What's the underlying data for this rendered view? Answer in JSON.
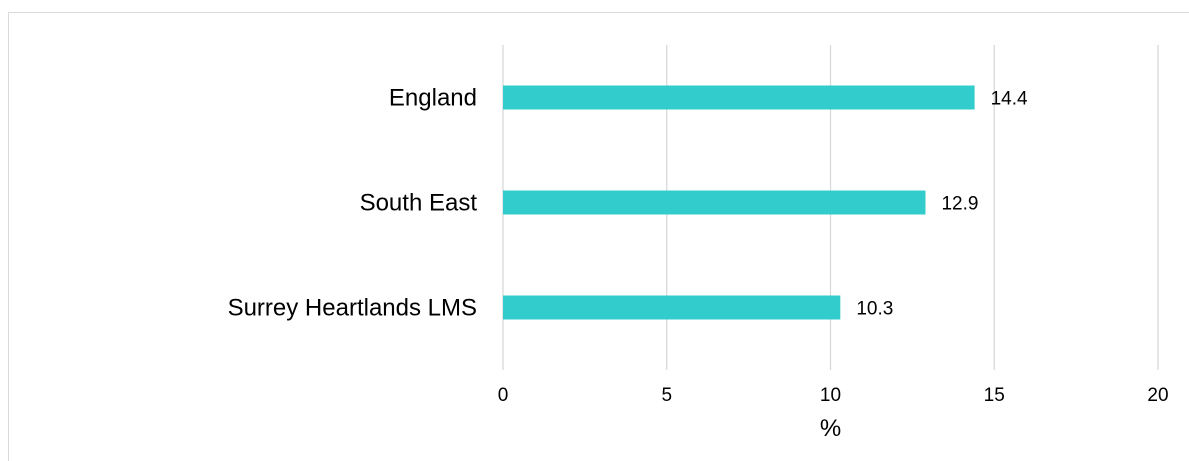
{
  "chart_data": {
    "type": "bar",
    "orientation": "horizontal",
    "categories": [
      "England",
      "South East",
      "Surrey Heartlands LMS"
    ],
    "values": [
      14.4,
      12.9,
      10.3
    ],
    "data_labels": [
      "14.4",
      "12.9",
      "10.3"
    ],
    "title": "",
    "xlabel": "%",
    "ylabel": "",
    "xlim": [
      0,
      20
    ],
    "x_ticks": [
      0,
      5,
      10,
      15,
      20
    ],
    "x_tick_labels": [
      "0",
      "5",
      "10",
      "15",
      "20"
    ],
    "grid": true,
    "legend": "none",
    "bar_color": "#33CCCC",
    "grid_color": "#D9D9D9"
  }
}
